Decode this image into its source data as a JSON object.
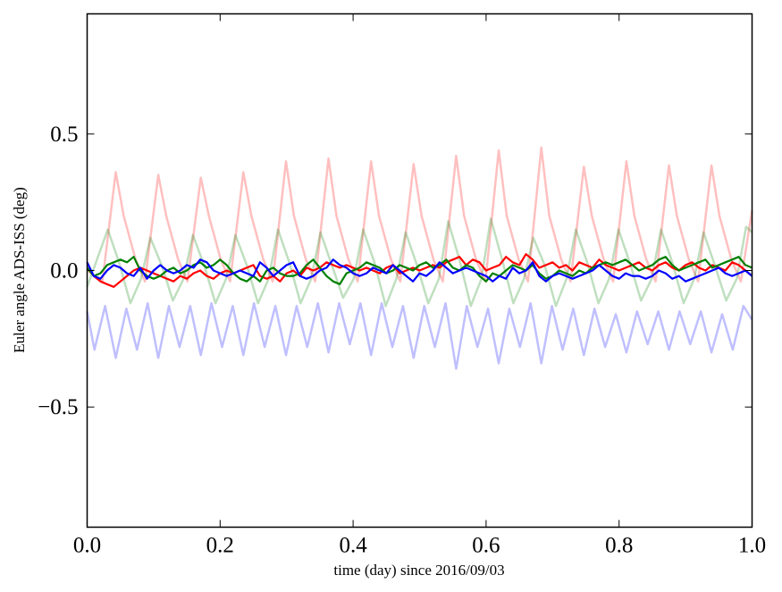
{
  "chart_data": {
    "type": "line",
    "title": "",
    "xlabel": "time (day) since 2016/09/03",
    "ylabel": "Euler angle ADS-ISS (deg)",
    "xlim": [
      0,
      1
    ],
    "ylim": [
      -0.94,
      0.94
    ],
    "xticks": [
      0.0,
      0.2,
      0.4,
      0.6,
      0.8,
      1.0
    ],
    "xtick_labels": [
      "0.0",
      "0.2",
      "0.4",
      "0.6",
      "0.8",
      "1.0"
    ],
    "yticks": [
      -0.5,
      0.0,
      0.5
    ],
    "ytick_labels": [
      "−0.5",
      "0.0",
      "0.5"
    ],
    "grid": false,
    "legend": "none",
    "pale_series": [
      {
        "color": "#ff0000",
        "opacity": 0.25,
        "points": [
          [
            0,
            0.0
          ],
          [
            0.023,
            -0.04
          ],
          [
            0.043,
            0.36
          ],
          [
            0.055,
            0.2
          ],
          [
            0.073,
            0.04
          ],
          [
            0.087,
            -0.04
          ],
          [
            0.107,
            0.35
          ],
          [
            0.119,
            0.2
          ],
          [
            0.137,
            0.04
          ],
          [
            0.151,
            -0.04
          ],
          [
            0.171,
            0.34
          ],
          [
            0.183,
            0.2
          ],
          [
            0.201,
            0.04
          ],
          [
            0.215,
            -0.04
          ],
          [
            0.235,
            0.36
          ],
          [
            0.247,
            0.2
          ],
          [
            0.265,
            0.04
          ],
          [
            0.279,
            -0.04
          ],
          [
            0.299,
            0.4
          ],
          [
            0.311,
            0.2
          ],
          [
            0.329,
            0.04
          ],
          [
            0.343,
            -0.04
          ],
          [
            0.363,
            0.41
          ],
          [
            0.375,
            0.2
          ],
          [
            0.393,
            0.04
          ],
          [
            0.407,
            -0.04
          ],
          [
            0.427,
            0.4
          ],
          [
            0.439,
            0.2
          ],
          [
            0.457,
            0.04
          ],
          [
            0.471,
            -0.04
          ],
          [
            0.491,
            0.39
          ],
          [
            0.503,
            0.2
          ],
          [
            0.521,
            0.04
          ],
          [
            0.535,
            -0.04
          ],
          [
            0.555,
            0.42
          ],
          [
            0.567,
            0.2
          ],
          [
            0.585,
            0.04
          ],
          [
            0.599,
            -0.04
          ],
          [
            0.619,
            0.44
          ],
          [
            0.631,
            0.2
          ],
          [
            0.649,
            0.04
          ],
          [
            0.663,
            -0.04
          ],
          [
            0.683,
            0.45
          ],
          [
            0.695,
            0.2
          ],
          [
            0.713,
            0.04
          ],
          [
            0.727,
            -0.04
          ],
          [
            0.747,
            0.38
          ],
          [
            0.759,
            0.2
          ],
          [
            0.777,
            0.04
          ],
          [
            0.791,
            -0.04
          ],
          [
            0.811,
            0.4
          ],
          [
            0.823,
            0.2
          ],
          [
            0.841,
            0.04
          ],
          [
            0.855,
            -0.04
          ],
          [
            0.875,
            0.385
          ],
          [
            0.887,
            0.2
          ],
          [
            0.905,
            0.04
          ],
          [
            0.919,
            -0.04
          ],
          [
            0.939,
            0.385
          ],
          [
            0.951,
            0.2
          ],
          [
            0.969,
            0.04
          ],
          [
            0.983,
            -0.04
          ],
          [
            1.0,
            0.22
          ]
        ]
      },
      {
        "color": "#008000",
        "opacity": 0.25,
        "points": [
          [
            0,
            -0.06
          ],
          [
            0.031,
            0.15
          ],
          [
            0.048,
            0.03
          ],
          [
            0.065,
            -0.12
          ],
          [
            0.081,
            -0.03
          ],
          [
            0.095,
            0.12
          ],
          [
            0.112,
            0.02
          ],
          [
            0.129,
            -0.11
          ],
          [
            0.145,
            -0.03
          ],
          [
            0.159,
            0.13
          ],
          [
            0.176,
            0.02
          ],
          [
            0.193,
            -0.12
          ],
          [
            0.209,
            -0.03
          ],
          [
            0.223,
            0.13
          ],
          [
            0.24,
            0.02
          ],
          [
            0.257,
            -0.12
          ],
          [
            0.273,
            -0.03
          ],
          [
            0.287,
            0.15
          ],
          [
            0.304,
            0.03
          ],
          [
            0.321,
            -0.12
          ],
          [
            0.337,
            -0.03
          ],
          [
            0.351,
            0.14
          ],
          [
            0.368,
            0.02
          ],
          [
            0.385,
            -0.1
          ],
          [
            0.401,
            -0.03
          ],
          [
            0.415,
            0.15
          ],
          [
            0.432,
            0.03
          ],
          [
            0.449,
            -0.13
          ],
          [
            0.465,
            -0.03
          ],
          [
            0.479,
            0.14
          ],
          [
            0.496,
            0.02
          ],
          [
            0.513,
            -0.12
          ],
          [
            0.529,
            -0.03
          ],
          [
            0.543,
            0.18
          ],
          [
            0.56,
            0.04
          ],
          [
            0.577,
            -0.13
          ],
          [
            0.593,
            -0.03
          ],
          [
            0.607,
            0.19
          ],
          [
            0.624,
            0.04
          ],
          [
            0.641,
            -0.12
          ],
          [
            0.657,
            -0.03
          ],
          [
            0.671,
            0.12
          ],
          [
            0.688,
            0.02
          ],
          [
            0.705,
            -0.13
          ],
          [
            0.721,
            -0.03
          ],
          [
            0.735,
            0.15
          ],
          [
            0.752,
            0.03
          ],
          [
            0.769,
            -0.12
          ],
          [
            0.785,
            -0.03
          ],
          [
            0.799,
            0.15
          ],
          [
            0.816,
            0.03
          ],
          [
            0.833,
            -0.11
          ],
          [
            0.849,
            -0.03
          ],
          [
            0.863,
            0.15
          ],
          [
            0.88,
            0.03
          ],
          [
            0.897,
            -0.12
          ],
          [
            0.913,
            -0.03
          ],
          [
            0.927,
            0.14
          ],
          [
            0.944,
            0.02
          ],
          [
            0.961,
            -0.11
          ],
          [
            0.977,
            -0.03
          ],
          [
            0.991,
            0.16
          ],
          [
            1.0,
            0.14
          ]
        ]
      },
      {
        "color": "#0000ff",
        "opacity": 0.25,
        "points": [
          [
            0,
            -0.15
          ],
          [
            0.011,
            -0.29
          ],
          [
            0.027,
            -0.13
          ],
          [
            0.043,
            -0.32
          ],
          [
            0.059,
            -0.14
          ],
          [
            0.075,
            -0.29
          ],
          [
            0.091,
            -0.12
          ],
          [
            0.107,
            -0.32
          ],
          [
            0.123,
            -0.13
          ],
          [
            0.139,
            -0.28
          ],
          [
            0.155,
            -0.13
          ],
          [
            0.171,
            -0.31
          ],
          [
            0.187,
            -0.12
          ],
          [
            0.203,
            -0.28
          ],
          [
            0.219,
            -0.13
          ],
          [
            0.235,
            -0.31
          ],
          [
            0.251,
            -0.12
          ],
          [
            0.267,
            -0.28
          ],
          [
            0.283,
            -0.13
          ],
          [
            0.299,
            -0.31
          ],
          [
            0.315,
            -0.13
          ],
          [
            0.331,
            -0.28
          ],
          [
            0.347,
            -0.12
          ],
          [
            0.363,
            -0.3
          ],
          [
            0.379,
            -0.12
          ],
          [
            0.395,
            -0.27
          ],
          [
            0.411,
            -0.12
          ],
          [
            0.427,
            -0.31
          ],
          [
            0.443,
            -0.12
          ],
          [
            0.459,
            -0.28
          ],
          [
            0.475,
            -0.13
          ],
          [
            0.491,
            -0.32
          ],
          [
            0.507,
            -0.13
          ],
          [
            0.523,
            -0.28
          ],
          [
            0.539,
            -0.12
          ],
          [
            0.555,
            -0.36
          ],
          [
            0.571,
            -0.13
          ],
          [
            0.587,
            -0.28
          ],
          [
            0.603,
            -0.14
          ],
          [
            0.619,
            -0.34
          ],
          [
            0.635,
            -0.14
          ],
          [
            0.651,
            -0.28
          ],
          [
            0.667,
            -0.12
          ],
          [
            0.683,
            -0.34
          ],
          [
            0.699,
            -0.13
          ],
          [
            0.715,
            -0.29
          ],
          [
            0.731,
            -0.14
          ],
          [
            0.747,
            -0.31
          ],
          [
            0.763,
            -0.14
          ],
          [
            0.779,
            -0.28
          ],
          [
            0.795,
            -0.16
          ],
          [
            0.811,
            -0.3
          ],
          [
            0.827,
            -0.15
          ],
          [
            0.843,
            -0.27
          ],
          [
            0.859,
            -0.15
          ],
          [
            0.875,
            -0.29
          ],
          [
            0.891,
            -0.15
          ],
          [
            0.907,
            -0.27
          ],
          [
            0.923,
            -0.15
          ],
          [
            0.939,
            -0.3
          ],
          [
            0.955,
            -0.16
          ],
          [
            0.971,
            -0.29
          ],
          [
            0.987,
            -0.13
          ],
          [
            1.0,
            -0.18
          ]
        ]
      }
    ],
    "x_step": 0.01,
    "series": [
      {
        "color": "#ff0000",
        "values": [
          0.01,
          -0.02,
          -0.04,
          -0.05,
          -0.06,
          -0.04,
          -0.02,
          0.0,
          0.01,
          0.0,
          -0.01,
          -0.02,
          -0.03,
          -0.04,
          -0.02,
          -0.03,
          -0.01,
          0.0,
          -0.02,
          -0.03,
          -0.01,
          0.0,
          -0.01,
          0.0,
          0.01,
          0.02,
          -0.02,
          -0.03,
          -0.02,
          -0.04,
          -0.01,
          0.0,
          -0.02,
          0.01,
          0.0,
          0.01,
          0.03,
          0.02,
          0.01,
          0.02,
          0.01,
          0.0,
          0.01,
          0.0,
          -0.01,
          0.01,
          0.02,
          -0.01,
          0.0,
          0.01,
          0.0,
          0.01,
          0.02,
          0.01,
          0.03,
          0.04,
          0.05,
          0.02,
          0.04,
          0.03,
          0.0,
          0.01,
          0.02,
          0.05,
          0.03,
          0.02,
          0.06,
          0.04,
          0.01,
          0.02,
          0.03,
          0.01,
          0.02,
          0.0,
          0.03,
          0.02,
          0.01,
          0.04,
          0.02,
          0.01,
          0.0,
          0.01,
          0.02,
          0.03,
          0.01,
          0.0,
          0.02,
          0.03,
          0.01,
          0.0,
          0.02,
          0.03,
          0.01,
          0.0,
          0.02,
          0.01,
          0.0,
          0.03,
          0.02,
          0.0,
          -0.02
        ]
      },
      {
        "color": "#008000",
        "values": [
          0.01,
          -0.02,
          -0.01,
          0.02,
          0.03,
          0.04,
          0.03,
          0.05,
          0.0,
          -0.02,
          -0.03,
          -0.02,
          0.0,
          0.01,
          -0.01,
          0.0,
          0.02,
          0.03,
          0.01,
          0.02,
          0.04,
          0.02,
          -0.01,
          -0.03,
          -0.04,
          -0.02,
          -0.04,
          0.0,
          0.01,
          -0.01,
          -0.02,
          -0.02,
          -0.01,
          0.02,
          0.04,
          0.01,
          -0.02,
          -0.04,
          -0.05,
          -0.01,
          0.0,
          0.01,
          0.03,
          0.02,
          0.01,
          -0.01,
          0.0,
          0.02,
          0.01,
          0.0,
          0.02,
          0.03,
          0.01,
          0.02,
          0.04,
          0.01,
          0.0,
          0.02,
          0.01,
          -0.02,
          -0.04,
          -0.01,
          -0.02,
          0.0,
          0.02,
          0.01,
          0.0,
          0.02,
          -0.01,
          -0.03,
          -0.02,
          0.0,
          -0.01,
          -0.02,
          0.0,
          -0.01,
          0.01,
          0.02,
          0.03,
          0.02,
          0.03,
          0.04,
          0.02,
          0.0,
          0.01,
          0.02,
          0.04,
          0.05,
          0.02,
          0.0,
          0.01,
          0.02,
          0.03,
          0.04,
          0.01,
          0.02,
          0.03,
          0.04,
          0.05,
          0.02,
          0.01
        ]
      },
      {
        "color": "#0000ff",
        "values": [
          0.03,
          -0.02,
          -0.03,
          0.0,
          0.02,
          0.01,
          -0.01,
          -0.02,
          0.01,
          -0.03,
          0.0,
          0.02,
          0.0,
          -0.01,
          0.0,
          0.02,
          0.01,
          0.04,
          0.03,
          0.0,
          -0.01,
          -0.02,
          -0.01,
          0.0,
          -0.01,
          -0.02,
          0.03,
          0.01,
          -0.02,
          0.0,
          0.02,
          0.03,
          -0.02,
          -0.03,
          -0.02,
          0.0,
          0.01,
          0.04,
          0.02,
          0.01,
          -0.01,
          -0.02,
          -0.01,
          0.01,
          0.0,
          -0.01,
          0.02,
          0.0,
          -0.02,
          -0.04,
          -0.01,
          -0.02,
          0.0,
          0.03,
          0.01,
          -0.01,
          0.0,
          0.01,
          0.0,
          -0.01,
          -0.02,
          -0.04,
          -0.02,
          -0.03,
          0.01,
          -0.01,
          0.0,
          0.03,
          -0.02,
          -0.04,
          -0.02,
          -0.01,
          -0.02,
          -0.03,
          -0.02,
          -0.01,
          0.0,
          0.02,
          0.0,
          -0.02,
          -0.03,
          -0.01,
          -0.02,
          -0.02,
          -0.03,
          -0.02,
          0.0,
          -0.01,
          -0.03,
          -0.02,
          -0.04,
          -0.03,
          -0.02,
          -0.01,
          0.0,
          0.01,
          -0.01,
          -0.02,
          -0.01,
          0.0,
          -0.02
        ]
      }
    ]
  }
}
